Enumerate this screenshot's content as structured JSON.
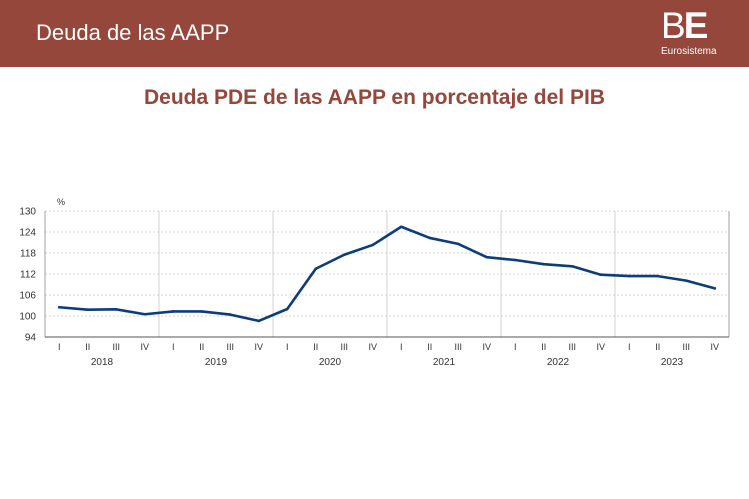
{
  "header": {
    "title": "Deuda de las AAPP",
    "logo_mark_b": "B",
    "logo_mark_e": "E",
    "logo_sub": "Eurosistema",
    "bg_color": "#94473a"
  },
  "chart_data": {
    "type": "line",
    "title": "Deuda PDE de las AAPP en porcentaje del PIB",
    "ylabel": "%",
    "ylim": [
      94,
      130
    ],
    "yticks": [
      94,
      100,
      106,
      112,
      118,
      124,
      130
    ],
    "quarter_labels": [
      "I",
      "II",
      "III",
      "IV"
    ],
    "years": [
      "2018",
      "2019",
      "2020",
      "2021",
      "2022",
      "2023"
    ],
    "series": [
      {
        "name": "Deuda PDE",
        "color": "#0c3c7c",
        "values": [
          102.5,
          101.8,
          101.9,
          100.5,
          101.3,
          101.3,
          100.4,
          98.6,
          102.0,
          113.5,
          117.5,
          120.3,
          125.5,
          122.3,
          120.6,
          116.8,
          116.0,
          114.8,
          114.2,
          111.8,
          111.4,
          111.4,
          110.1,
          107.9
        ]
      }
    ]
  }
}
